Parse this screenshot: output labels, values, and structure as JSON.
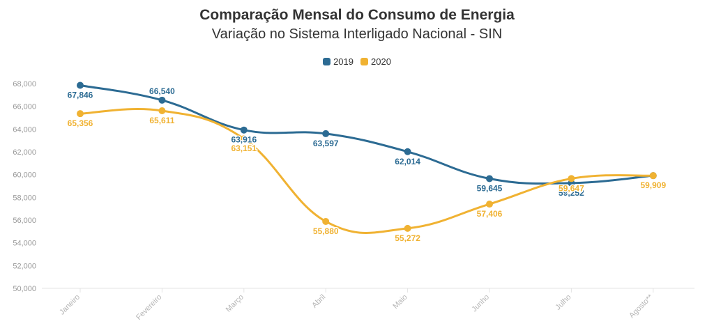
{
  "chart_data": {
    "type": "line",
    "title": "Comparação Mensal do Consumo de Energia",
    "subtitle": "Variação no Sistema Interligado Nacional - SIN",
    "categories": [
      "Janeiro",
      "Fevereiro",
      "Março",
      "Abril",
      "Maio",
      "Junho",
      "Julho",
      "Agosto**"
    ],
    "series": [
      {
        "name": "2019",
        "color": "#2c6b93",
        "values": [
          67846,
          66540,
          63916,
          63597,
          62014,
          59645,
          59252,
          59909
        ],
        "labels": [
          "67,846",
          "66,540",
          "63,916",
          "63,597",
          "62,014",
          "59,645",
          "59,252",
          "59,909"
        ]
      },
      {
        "name": "2020",
        "color": "#f0b232",
        "values": [
          65356,
          65611,
          63151,
          55880,
          55272,
          57406,
          59647,
          59909
        ],
        "labels": [
          "65,356",
          "65,611",
          "63,151",
          "55,880",
          "55,272",
          "57,406",
          "59,647",
          "59,909"
        ]
      }
    ],
    "ylim": [
      50000,
      68000
    ],
    "yticks": [
      50000,
      52000,
      54000,
      56000,
      58000,
      60000,
      62000,
      64000,
      66000,
      68000
    ],
    "ytick_labels": [
      "50,000",
      "52,000",
      "54,000",
      "56,000",
      "58,000",
      "60,000",
      "62,000",
      "64,000",
      "66,000",
      "68,000"
    ],
    "xlabel": "",
    "ylabel": "",
    "grid": false,
    "legend_position": "top-center"
  }
}
